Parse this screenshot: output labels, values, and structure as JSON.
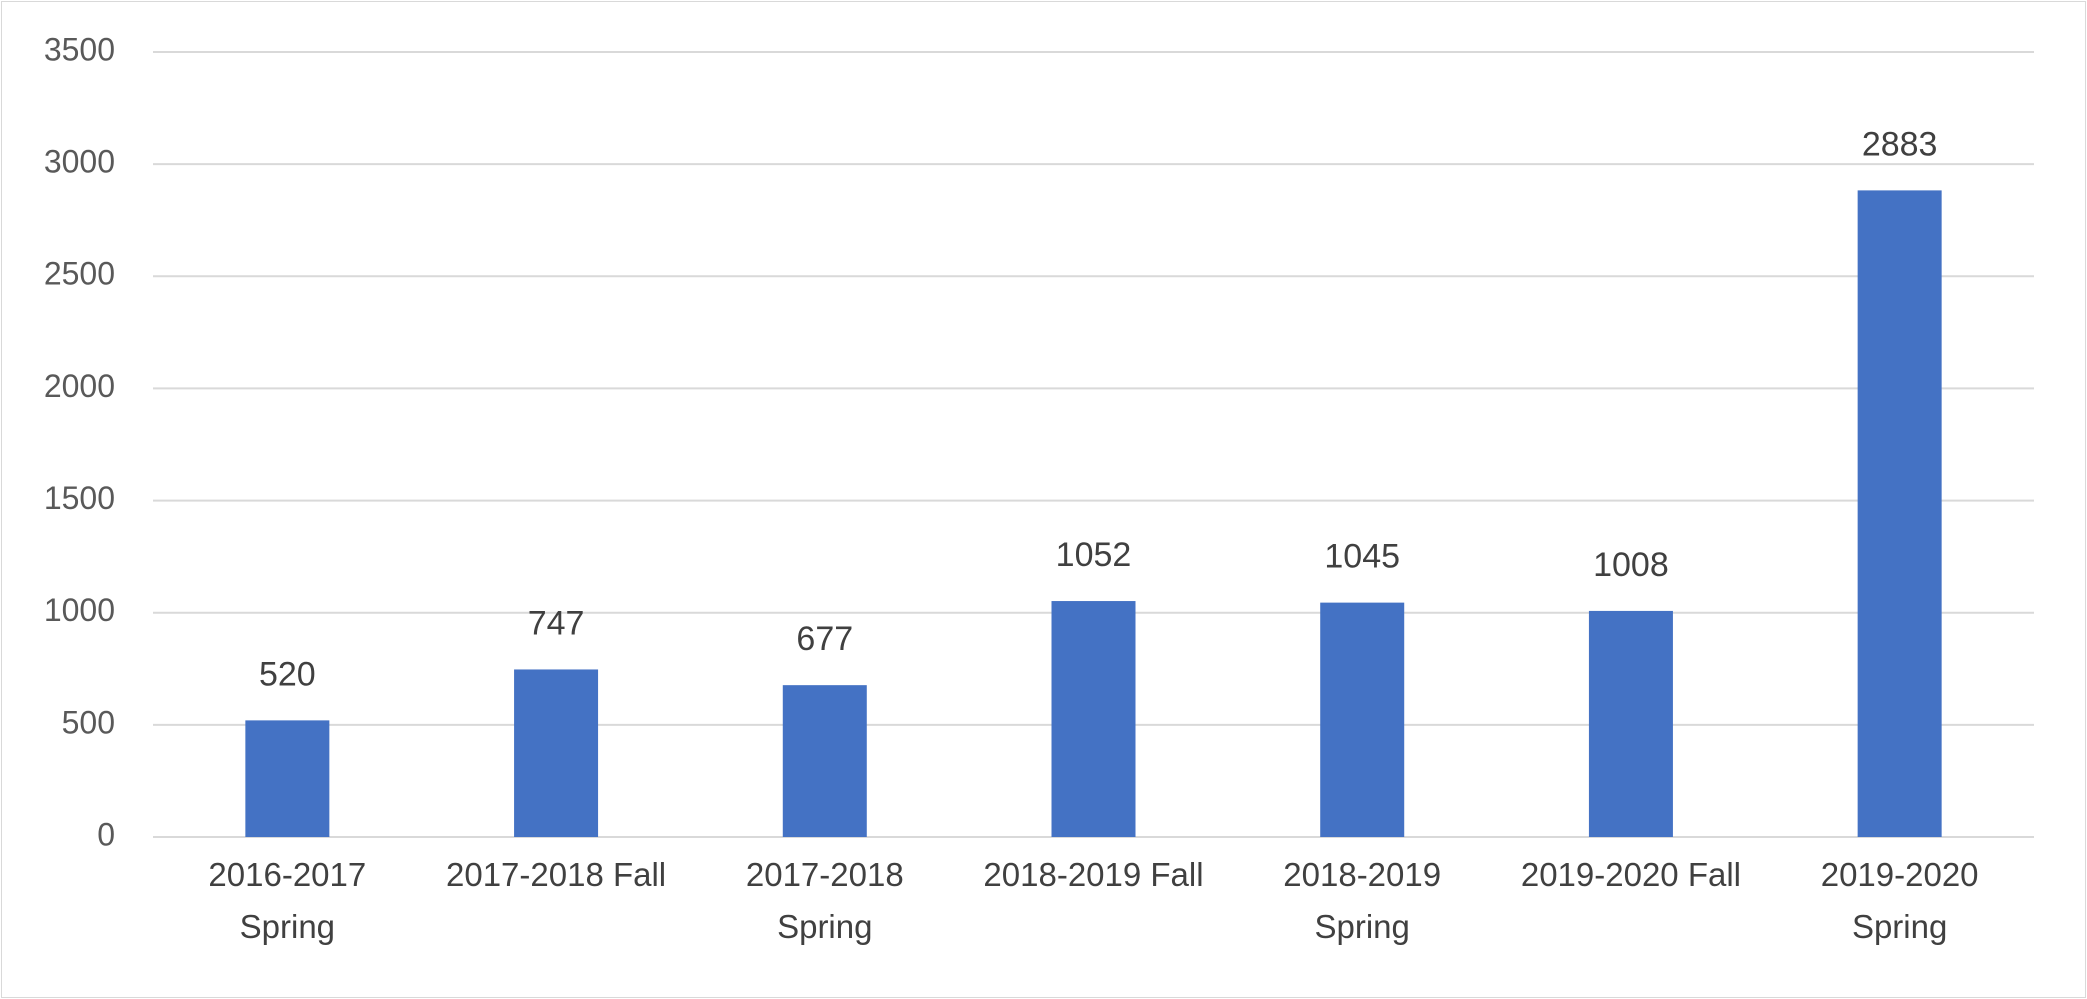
{
  "chart_data": {
    "type": "bar",
    "categories": [
      "2016-2017 Spring",
      "2017-2018 Fall",
      "2017-2018 Spring",
      "2018-2019 Fall",
      "2018-2019 Spring",
      "2019-2020 Fall",
      "2019-2020 Spring"
    ],
    "values": [
      520,
      747,
      677,
      1052,
      1045,
      1008,
      2883
    ],
    "color": "#4472c4",
    "ylim": [
      0,
      3500
    ],
    "yticks": [
      0,
      500,
      1000,
      1500,
      2000,
      2500,
      3000,
      3500
    ],
    "grid": true
  }
}
